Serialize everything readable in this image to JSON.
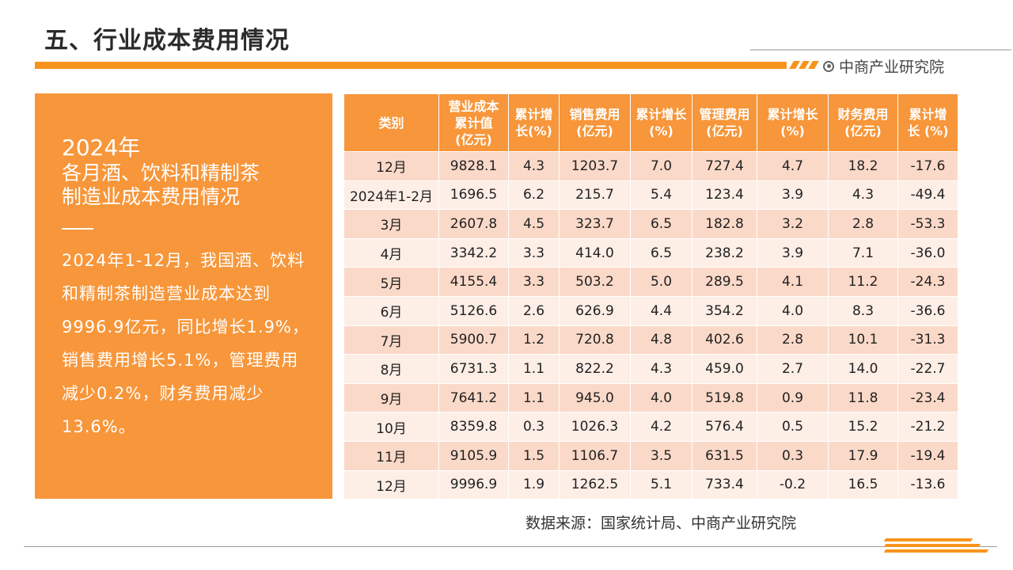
{
  "header": {
    "title": "五、行业成本费用情况",
    "logo_text": "中商产业研究院"
  },
  "panel": {
    "year": "2024年",
    "subtitle": "各月酒、饮料和精制茶\n制造业成本费用情况",
    "body": "2024年1-12月，我国酒、饮料和精制茶制造营业成本达到9996.9亿元，同比增长1.9%，销售费用增长5.1%，管理费用减少0.2%，财务费用减少13.6%。"
  },
  "table": {
    "headers": [
      "类别",
      "营业成本\n累计值\n(亿元)",
      "累计增\n长(%)",
      "销售费用\n(亿元)",
      "累计增长\n(%)",
      "管理费用\n(亿元)",
      "累计增长\n(%)",
      "财务费用\n(亿元)",
      "累计增\n长 (%)"
    ],
    "rows": [
      [
        "12月",
        "9828.1",
        "4.3",
        "1203.7",
        "7.0",
        "727.4",
        "4.7",
        "18.2",
        "-17.6"
      ],
      [
        "2024年1-2月",
        "1696.5",
        "6.2",
        "215.7",
        "5.4",
        "123.4",
        "3.9",
        "4.3",
        "-49.4"
      ],
      [
        "3月",
        "2607.8",
        "4.5",
        "323.7",
        "6.5",
        "182.8",
        "3.2",
        "2.8",
        "-53.3"
      ],
      [
        "4月",
        "3342.2",
        "3.3",
        "414.0",
        "6.5",
        "238.2",
        "3.9",
        "7.1",
        "-36.0"
      ],
      [
        "5月",
        "4155.4",
        "3.3",
        "503.2",
        "5.0",
        "289.5",
        "4.1",
        "11.2",
        "-24.3"
      ],
      [
        "6月",
        "5126.6",
        "2.6",
        "626.9",
        "4.4",
        "354.2",
        "4.0",
        "8.3",
        "-36.6"
      ],
      [
        "7月",
        "5900.7",
        "1.2",
        "720.8",
        "4.8",
        "402.6",
        "2.8",
        "10.1",
        "-31.3"
      ],
      [
        "8月",
        "6731.3",
        "1.1",
        "822.2",
        "4.3",
        "459.0",
        "2.7",
        "14.0",
        "-22.7"
      ],
      [
        "9月",
        "7641.2",
        "1.1",
        "945.0",
        "4.0",
        "519.8",
        "0.9",
        "11.8",
        "-23.4"
      ],
      [
        "10月",
        "8359.8",
        "0.3",
        "1026.3",
        "4.2",
        "576.4",
        "0.5",
        "15.2",
        "-21.2"
      ],
      [
        "11月",
        "9105.9",
        "1.5",
        "1106.7",
        "3.5",
        "631.5",
        "0.3",
        "17.9",
        "-19.4"
      ],
      [
        "12月",
        "9996.9",
        "1.9",
        "1262.5",
        "5.1",
        "733.4",
        "-0.2",
        "16.5",
        "-13.6"
      ]
    ]
  },
  "footer": {
    "source": "数据来源：国家统计局、中商产业研究院"
  },
  "colors": {
    "accent": "#f7963a",
    "row_odd": "#fbd9c8",
    "row_even": "#fdeee6"
  }
}
